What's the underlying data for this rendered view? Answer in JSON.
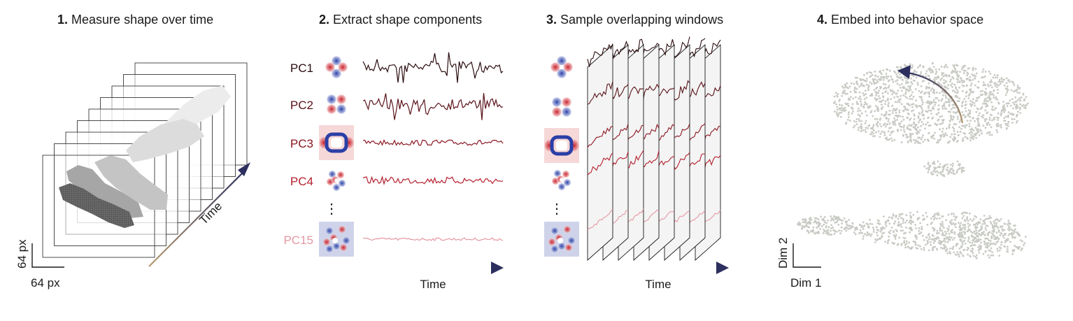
{
  "panels": [
    {
      "num": "1.",
      "title": "Measure shape over time"
    },
    {
      "num": "2.",
      "title": "Extract shape components"
    },
    {
      "num": "3.",
      "title": "Sample overlapping windows"
    },
    {
      "num": "4.",
      "title": "Embed into behavior space"
    }
  ],
  "panel1": {
    "axis_x": "64 px",
    "axis_y": "64 px",
    "time_label": "Time"
  },
  "panel2": {
    "components": [
      {
        "label": "PC1",
        "color": "#2b0d10"
      },
      {
        "label": "PC2",
        "color": "#5a1219"
      },
      {
        "label": "PC3",
        "color": "#8c1722"
      },
      {
        "label": "PC4",
        "color": "#b41f2d"
      },
      {
        "label": "PC15",
        "color": "#e597a2"
      }
    ],
    "ellipsis": "⋮",
    "time_label": "Time"
  },
  "panel3": {
    "ellipsis": "⋮",
    "time_label": "Time"
  },
  "panel4": {
    "axis_x": "Dim 1",
    "axis_y": "Dim 2"
  },
  "colors": {
    "arrow_navy": "#2d2f5e",
    "arrow_tan": "#b89c72",
    "scatter": "#c8cbc4"
  }
}
